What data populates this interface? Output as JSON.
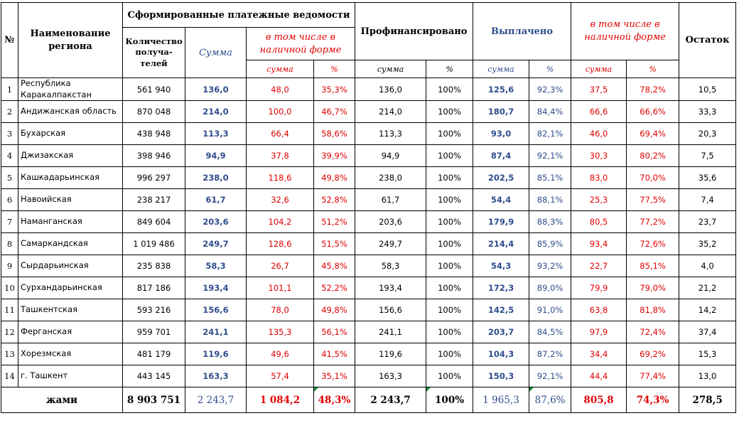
{
  "headers": {
    "no": "№",
    "region": "Наименование региона",
    "formed": "Сформированные платежные ведомости",
    "recipients": "Количество получа-телей",
    "sum": "Сумма",
    "cash_incl": "в том числе в наличной форме",
    "financed": "Профинансировано",
    "paid": "Выплачено",
    "paid_cash_incl": "в том числе в наличной форме",
    "remainder": "Остаток",
    "sub_sum": "сумма",
    "sub_pct": "%"
  },
  "rows": [
    {
      "n": "1",
      "region": "Республика Каракалпакстан",
      "count": "561 940",
      "sum": "136,0",
      "cash": "48,0",
      "cash_pct": "35,3%",
      "fin": "136,0",
      "fin_pct": "100%",
      "paid": "125,6",
      "paid_pct": "92,3%",
      "paid_cash": "37,5",
      "paid_cash_pct": "78,2%",
      "rest": "10,5"
    },
    {
      "n": "2",
      "region": "Андижанская область",
      "count": "870 048",
      "sum": "214,0",
      "cash": "100,0",
      "cash_pct": "46,7%",
      "fin": "214,0",
      "fin_pct": "100%",
      "paid": "180,7",
      "paid_pct": "84,4%",
      "paid_cash": "66,6",
      "paid_cash_pct": "66,6%",
      "rest": "33,3"
    },
    {
      "n": "3",
      "region": "Бухарская",
      "count": "438 948",
      "sum": "113,3",
      "cash": "66,4",
      "cash_pct": "58,6%",
      "fin": "113,3",
      "fin_pct": "100%",
      "paid": "93,0",
      "paid_pct": "82,1%",
      "paid_cash": "46,0",
      "paid_cash_pct": "69,4%",
      "rest": "20,3"
    },
    {
      "n": "4",
      "region": "Джизакская",
      "count": "398 946",
      "sum": "94,9",
      "cash": "37,8",
      "cash_pct": "39,9%",
      "fin": "94,9",
      "fin_pct": "100%",
      "paid": "87,4",
      "paid_pct": "92,1%",
      "paid_cash": "30,3",
      "paid_cash_pct": "80,2%",
      "rest": "7,5"
    },
    {
      "n": "5",
      "region": "Кашкадарьинская",
      "count": "996 297",
      "sum": "238,0",
      "cash": "118,6",
      "cash_pct": "49,8%",
      "fin": "238,0",
      "fin_pct": "100%",
      "paid": "202,5",
      "paid_pct": "85,1%",
      "paid_cash": "83,0",
      "paid_cash_pct": "70,0%",
      "rest": "35,6"
    },
    {
      "n": "6",
      "region": "Навоийская",
      "count": "238 217",
      "sum": "61,7",
      "cash": "32,6",
      "cash_pct": "52,8%",
      "fin": "61,7",
      "fin_pct": "100%",
      "paid": "54,4",
      "paid_pct": "88,1%",
      "paid_cash": "25,3",
      "paid_cash_pct": "77,5%",
      "rest": "7,4"
    },
    {
      "n": "7",
      "region": "Наманганская",
      "count": "849 604",
      "sum": "203,6",
      "cash": "104,2",
      "cash_pct": "51,2%",
      "fin": "203,6",
      "fin_pct": "100%",
      "paid": "179,9",
      "paid_pct": "88,3%",
      "paid_cash": "80,5",
      "paid_cash_pct": "77,2%",
      "rest": "23,7"
    },
    {
      "n": "8",
      "region": "Самаркандская",
      "count": "1 019 486",
      "sum": "249,7",
      "cash": "128,6",
      "cash_pct": "51,5%",
      "fin": "249,7",
      "fin_pct": "100%",
      "paid": "214,4",
      "paid_pct": "85,9%",
      "paid_cash": "93,4",
      "paid_cash_pct": "72,6%",
      "rest": "35,2"
    },
    {
      "n": "9",
      "region": "Сырдарьинская",
      "count": "235 838",
      "sum": "58,3",
      "cash": "26,7",
      "cash_pct": "45,8%",
      "fin": "58,3",
      "fin_pct": "100%",
      "paid": "54,3",
      "paid_pct": "93,2%",
      "paid_cash": "22,7",
      "paid_cash_pct": "85,1%",
      "rest": "4,0"
    },
    {
      "n": "10",
      "region": "Сурхандарьинская",
      "count": "817 186",
      "sum": "193,4",
      "cash": "101,1",
      "cash_pct": "52,2%",
      "fin": "193,4",
      "fin_pct": "100%",
      "paid": "172,3",
      "paid_pct": "89,0%",
      "paid_cash": "79,9",
      "paid_cash_pct": "79,0%",
      "rest": "21,2"
    },
    {
      "n": "11",
      "region": "Ташкентская",
      "count": "593 216",
      "sum": "156,6",
      "cash": "78,0",
      "cash_pct": "49,8%",
      "fin": "156,6",
      "fin_pct": "100%",
      "paid": "142,5",
      "paid_pct": "91,0%",
      "paid_cash": "63,8",
      "paid_cash_pct": "81,8%",
      "rest": "14,2"
    },
    {
      "n": "12",
      "region": "Ферганская",
      "count": "959 701",
      "sum": "241,1",
      "cash": "135,3",
      "cash_pct": "56,1%",
      "fin": "241,1",
      "fin_pct": "100%",
      "paid": "203,7",
      "paid_pct": "84,5%",
      "paid_cash": "97,9",
      "paid_cash_pct": "72,4%",
      "rest": "37,4"
    },
    {
      "n": "13",
      "region": "Хорезмская",
      "count": "481 179",
      "sum": "119,6",
      "cash": "49,6",
      "cash_pct": "41,5%",
      "fin": "119,6",
      "fin_pct": "100%",
      "paid": "104,3",
      "paid_pct": "87,2%",
      "paid_cash": "34,4",
      "paid_cash_pct": "69,2%",
      "rest": "15,3"
    },
    {
      "n": "14",
      "region": "г. Ташкент",
      "count": "443 145",
      "sum": "163,3",
      "cash": "57,4",
      "cash_pct": "35,1%",
      "fin": "163,3",
      "fin_pct": "100%",
      "paid": "150,3",
      "paid_pct": "92,1%",
      "paid_cash": "44,4",
      "paid_cash_pct": "77,4%",
      "rest": "13,0"
    }
  ],
  "total": {
    "label": "жами",
    "count": "8 903 751",
    "sum": "2 243,7",
    "cash": "1 084,2",
    "cash_pct": "48,3%",
    "fin": "2 243,7",
    "fin_pct": "100%",
    "paid": "1 965,3",
    "paid_pct": "87,6%",
    "paid_cash": "805,8",
    "paid_cash_pct": "74,3%",
    "rest": "278,5"
  },
  "colors": {
    "blue": "#2f4d8c",
    "red": "#e00000",
    "flag": "#1e8b3a"
  }
}
